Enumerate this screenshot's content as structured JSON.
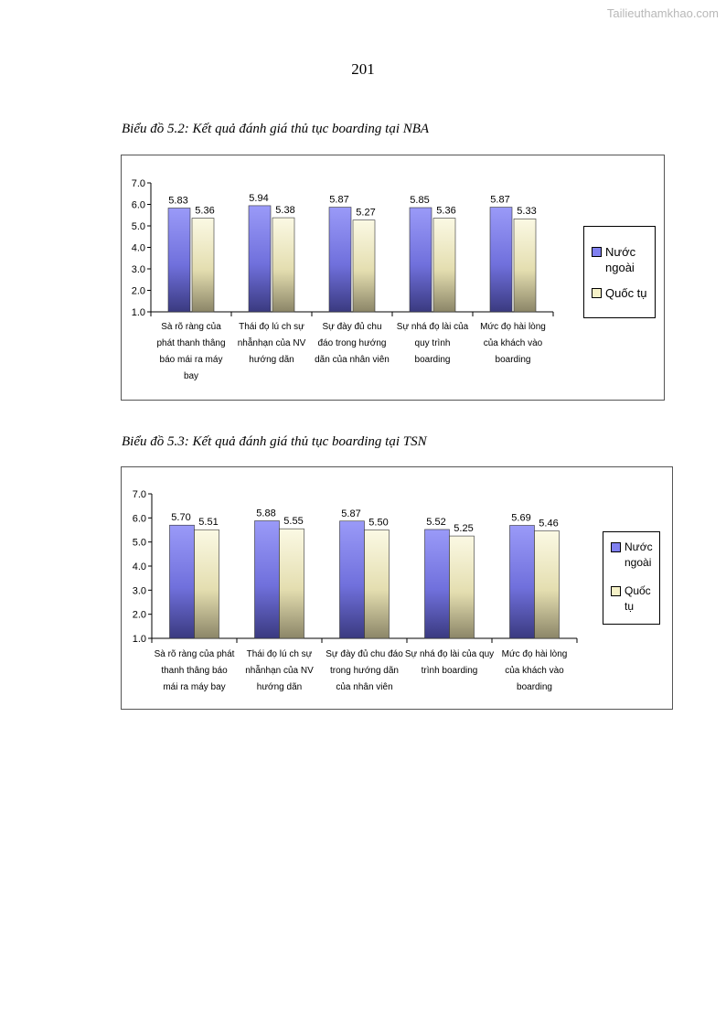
{
  "watermark": "Tailieuthamkhao.com",
  "page_number": "201",
  "colors": {
    "series1": "#7474e0",
    "series2": "#e8e4b8",
    "axis": "#000000"
  },
  "chart_data": [
    {
      "type": "bar",
      "title": "Biểu đồ 5.2: Kết quả đánh giá thủ tục boarding tại NBA",
      "categories": [
        [
          "Sà rõ ràng của",
          "phát thanh thâng",
          "báo mái ra máy",
          "bay"
        ],
        [
          "Thái đọ lú ch sự",
          "nhẫnhạn của NV",
          "hướng dãn"
        ],
        [
          "Sự đày đủ chu",
          "đáo trong hướng",
          "dãn của nhân viên"
        ],
        [
          "Sự nhá đọ lài của",
          "quy trình",
          "boarding"
        ],
        [
          "Mức đọ hài lòng",
          "của khách vào",
          "boarding"
        ]
      ],
      "series": [
        {
          "name": "Nước ngoài",
          "values": [
            5.83,
            5.94,
            5.87,
            5.85,
            5.87
          ],
          "labels": [
            "5.83",
            "5.94",
            "5.87",
            "5.85",
            "5.87"
          ]
        },
        {
          "name": "Quốc tụ",
          "values": [
            5.36,
            5.38,
            5.27,
            5.36,
            5.33
          ],
          "labels": [
            "5.36",
            "5.38",
            "5.27",
            "5.36",
            "5.33"
          ]
        }
      ],
      "legend": [
        "Nước ngoài",
        "Quốc tụ"
      ],
      "legend_position": "right",
      "ylim": [
        1.0,
        7.0
      ],
      "yticks": [
        "7.0",
        "6.0",
        "5.0",
        "4.0",
        "3.0",
        "2.0",
        "1.0"
      ],
      "grid": false
    },
    {
      "type": "bar",
      "title": "Biểu đồ 5.3: Kết quả đánh giá thủ tục boarding tại TSN",
      "categories": [
        [
          "Sà rõ ràng của phát",
          "thanh thâng báo",
          "mái ra máy bay"
        ],
        [
          "Thái đọ lú ch sự",
          "nhẫnhạn của NV",
          "hướng dãn"
        ],
        [
          "Sự đày đủ chu đáo",
          "trong hướng dãn",
          "của nhân viên"
        ],
        [
          "Sự nhá đọ lài của quy",
          "trình boarding"
        ],
        [
          "Mức đọ hài lòng",
          "của khách vào",
          "boarding"
        ]
      ],
      "series": [
        {
          "name": "Nước ngoài",
          "values": [
            5.7,
            5.88,
            5.87,
            5.52,
            5.69
          ],
          "labels": [
            "5.70",
            "5.88",
            "5.87",
            "5.52",
            "5.69"
          ]
        },
        {
          "name": "Quốc tụ",
          "values": [
            5.51,
            5.55,
            5.5,
            5.25,
            5.46
          ],
          "labels": [
            "5.51",
            "5.55",
            "5.50",
            "5.25",
            "5.46"
          ]
        }
      ],
      "legend": [
        "Nước ngoài",
        "Quốc tụ"
      ],
      "legend_position": "right",
      "ylim": [
        1.0,
        7.0
      ],
      "yticks": [
        "7.0",
        "6.0",
        "5.0",
        "4.0",
        "3.0",
        "2.0",
        "1.0"
      ],
      "grid": false
    }
  ]
}
